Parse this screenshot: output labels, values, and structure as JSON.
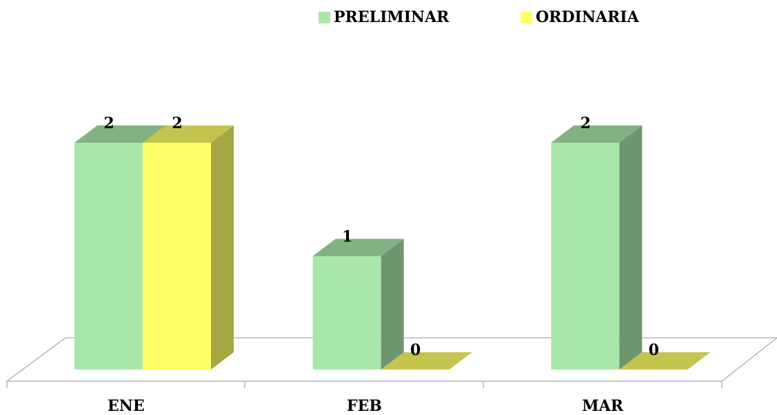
{
  "chart_data": {
    "type": "bar3d",
    "categories": [
      "ENE",
      "FEB",
      "MAR"
    ],
    "series": [
      {
        "name": "PRELIMINAR",
        "color": "#a9e6a9",
        "values": [
          2,
          1,
          2
        ]
      },
      {
        "name": "ORDINARIA",
        "color": "#ffff66",
        "values": [
          2,
          0,
          0
        ]
      }
    ],
    "ylim": [
      0,
      2
    ],
    "legend": "top"
  }
}
